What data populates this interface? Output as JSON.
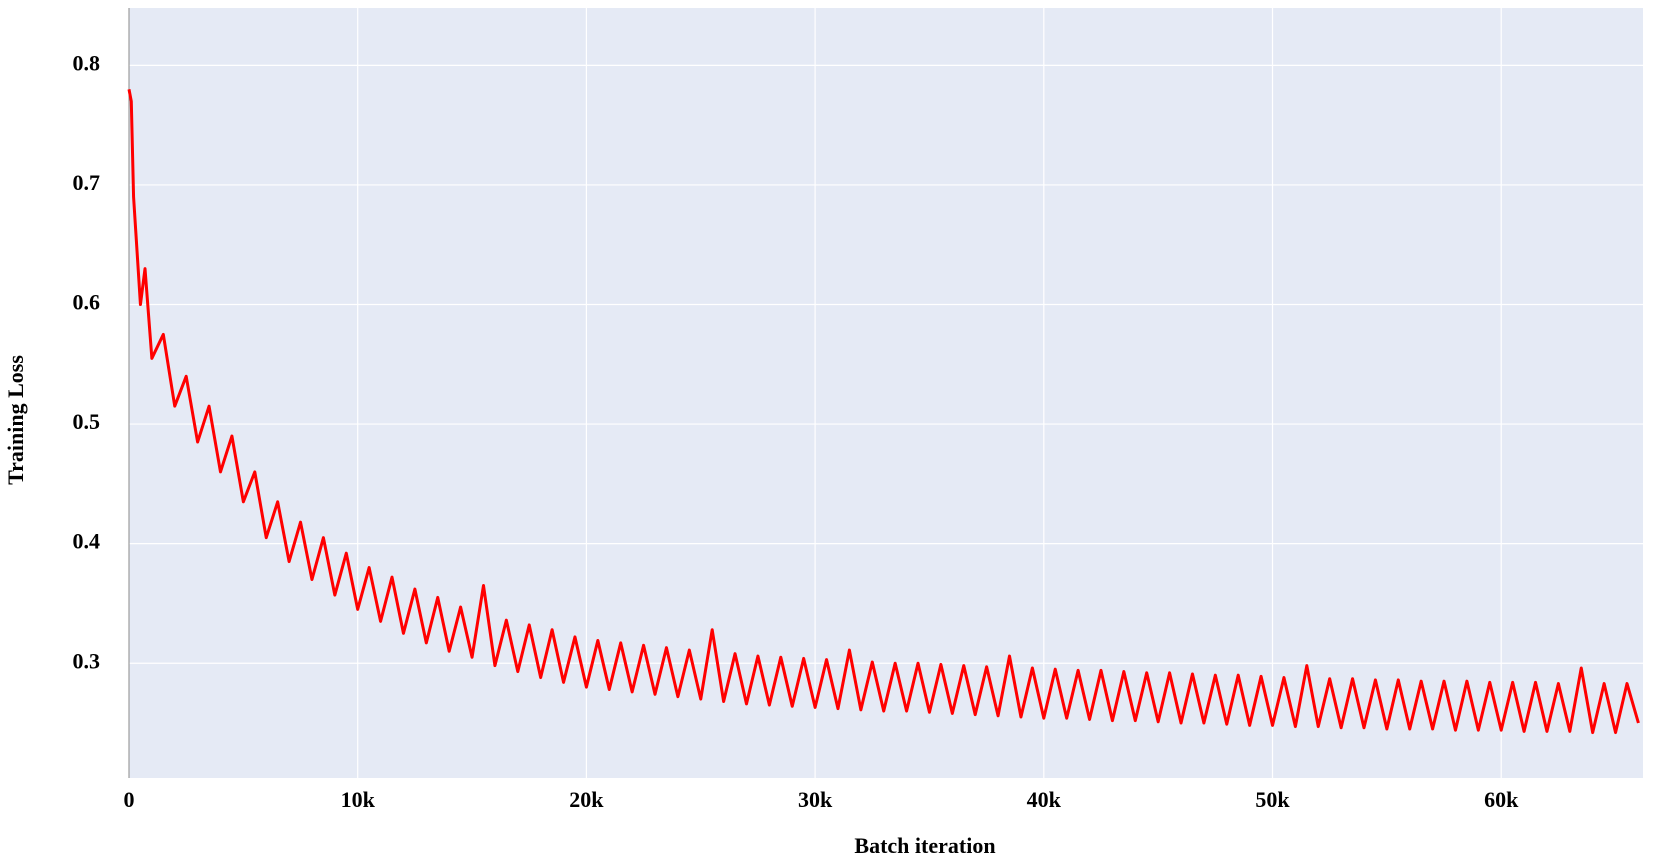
{
  "chart_data": {
    "type": "line",
    "xlabel": "Batch iteration",
    "ylabel": "Training Loss",
    "x": [
      0,
      100,
      200,
      300,
      500,
      700,
      1000,
      1500,
      2000,
      2500,
      3000,
      3500,
      4000,
      4500,
      5000,
      5500,
      6000,
      6500,
      7000,
      7500,
      8000,
      8500,
      9000,
      9500,
      10000,
      10500,
      11000,
      11500,
      12000,
      12500,
      13000,
      13500,
      14000,
      14500,
      15000,
      15500,
      16000,
      16500,
      17000,
      17500,
      18000,
      18500,
      19000,
      19500,
      20000,
      20500,
      21000,
      21500,
      22000,
      22500,
      23000,
      23500,
      24000,
      24500,
      25000,
      25500,
      26000,
      26500,
      27000,
      27500,
      28000,
      28500,
      29000,
      29500,
      30000,
      30500,
      31000,
      31500,
      32000,
      32500,
      33000,
      33500,
      34000,
      34500,
      35000,
      35500,
      36000,
      36500,
      37000,
      37500,
      38000,
      38500,
      39000,
      39500,
      40000,
      40500,
      41000,
      41500,
      42000,
      42500,
      43000,
      43500,
      44000,
      44500,
      45000,
      45500,
      46000,
      46500,
      47000,
      47500,
      48000,
      48500,
      49000,
      49500,
      50000,
      50500,
      51000,
      51500,
      52000,
      52500,
      53000,
      53500,
      54000,
      54500,
      55000,
      55500,
      56000,
      56500,
      57000,
      57500,
      58000,
      58500,
      59000,
      59500,
      60000,
      60500,
      61000,
      61500,
      62000,
      62500,
      63000,
      63500,
      64000,
      64500,
      65000,
      65500,
      66000
    ],
    "series": [
      {
        "color": "#ff0000",
        "values": [
          0.78,
          0.77,
          0.69,
          0.66,
          0.6,
          0.63,
          0.555,
          0.575,
          0.515,
          0.54,
          0.485,
          0.515,
          0.46,
          0.49,
          0.435,
          0.46,
          0.405,
          0.435,
          0.385,
          0.418,
          0.37,
          0.405,
          0.357,
          0.392,
          0.345,
          0.38,
          0.335,
          0.372,
          0.325,
          0.362,
          0.317,
          0.355,
          0.31,
          0.347,
          0.305,
          0.365,
          0.298,
          0.336,
          0.293,
          0.332,
          0.288,
          0.328,
          0.284,
          0.322,
          0.28,
          0.319,
          0.278,
          0.317,
          0.276,
          0.315,
          0.274,
          0.313,
          0.272,
          0.311,
          0.27,
          0.328,
          0.268,
          0.308,
          0.266,
          0.306,
          0.265,
          0.305,
          0.264,
          0.304,
          0.263,
          0.303,
          0.262,
          0.311,
          0.261,
          0.301,
          0.26,
          0.3,
          0.26,
          0.3,
          0.259,
          0.299,
          0.258,
          0.298,
          0.257,
          0.297,
          0.256,
          0.306,
          0.255,
          0.296,
          0.254,
          0.295,
          0.254,
          0.294,
          0.253,
          0.294,
          0.252,
          0.293,
          0.252,
          0.292,
          0.251,
          0.292,
          0.25,
          0.291,
          0.25,
          0.29,
          0.249,
          0.29,
          0.248,
          0.289,
          0.248,
          0.288,
          0.247,
          0.298,
          0.247,
          0.287,
          0.246,
          0.287,
          0.246,
          0.286,
          0.245,
          0.286,
          0.245,
          0.285,
          0.245,
          0.285,
          0.244,
          0.285,
          0.244,
          0.284,
          0.244,
          0.284,
          0.243,
          0.284,
          0.243,
          0.283,
          0.243,
          0.296,
          0.242,
          0.283,
          0.242,
          0.283,
          0.25
        ]
      }
    ],
    "xlim": [
      0,
      66200
    ],
    "xticks": [
      0,
      {
        "value": 10000,
        "label": "10k"
      },
      {
        "value": 20000,
        "label": "20k"
      },
      {
        "value": 30000,
        "label": "30k"
      },
      {
        "value": 40000,
        "label": "40k"
      },
      {
        "value": 50000,
        "label": "50k"
      },
      {
        "value": 60000,
        "label": "60k"
      }
    ],
    "ylim": [
      0.204,
      0.848
    ],
    "yticks": [
      0.3,
      0.4,
      0.5,
      0.6,
      0.7,
      0.8
    ],
    "grid": true
  }
}
